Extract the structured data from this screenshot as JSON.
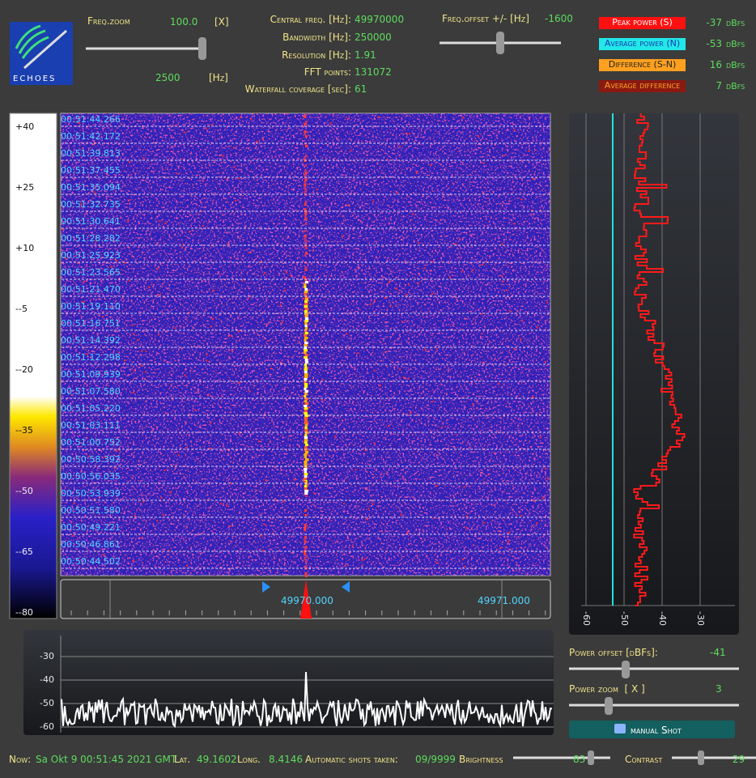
{
  "logo": "ECHOES",
  "freq_zoom": {
    "label": "Freq.zoom",
    "value": "100.0",
    "unit": "[X]",
    "hz_value": "2500",
    "hz_unit": "[Hz]"
  },
  "info": [
    {
      "label": "Central freq. [Hz]:",
      "value": "49970000"
    },
    {
      "label": "Bandwidth [Hz]:",
      "value": "250000"
    },
    {
      "label": "Resolution [Hz]:",
      "value": "1.91"
    },
    {
      "label": "FFT points:",
      "value": "131072"
    },
    {
      "label": "Waterfall coverage [sec]:",
      "value": "61"
    }
  ],
  "freq_offset": {
    "label": "Freq.offset +/- [Hz]",
    "value": "-1600"
  },
  "power": [
    {
      "label": "Peak power (S)",
      "value": "-37",
      "unit": "dBfs"
    },
    {
      "label": "Average power (N)",
      "value": "-53",
      "unit": "dBfs"
    },
    {
      "label": "Difference (S-N)",
      "value": "16",
      "unit": "dBfs"
    },
    {
      "label": "Average difference",
      "value": "7",
      "unit": "dBfs"
    }
  ],
  "color_scale": [
    "+40",
    "+25",
    "+10",
    "--5",
    "--20",
    "--35",
    "--50",
    "--65",
    "--80"
  ],
  "waterfall_times": [
    "00:51:44.266",
    "00:51:42.172",
    "00:51:39.813",
    "00:51:37.455",
    "00:51:35.094",
    "00:51:32.735",
    "00:51:30.641",
    "00:51:28.282",
    "00:51:25.923",
    "00:51:23.565",
    "00:51:21.470",
    "00:51:19.110",
    "00:51:16.751",
    "00:51:14.392",
    "00:51:12.298",
    "00:51:09.939",
    "00:51:07.580",
    "00:51:05.220",
    "00:51:03.111",
    "00:51:00.752",
    "00:50:58.392",
    "00:50:56.035",
    "00:50:53.939",
    "00:50:51.580",
    "00:50:49.221",
    "00:50:46.861",
    "00:50:44.502"
  ],
  "freq_axis": [
    "49970.000",
    "49971.000"
  ],
  "power_plot_ticks": [
    "-60",
    "-50",
    "-40",
    "-30"
  ],
  "spectrum_ticks": [
    "-30",
    "-40",
    "-50",
    "-60"
  ],
  "power_offset": {
    "label": "Power offset [dBFs]:",
    "value": "-41"
  },
  "power_zoom": {
    "label": "Power zoom  [ X ]",
    "value": "3"
  },
  "button": "manual Shot",
  "status": {
    "now_label": "Now:",
    "now": "Sa Okt 9 00:51:45 2021 GMT",
    "lat_label": "Lat.",
    "lat": "49.1602",
    "long_label": "Long.",
    "long": "8.4146",
    "shots_label": "Automatic shots taken:",
    "shots": "09/9999",
    "brightness_label": "Brightness",
    "brightness": "83",
    "contrast_label": "Contrast",
    "contrast": "29"
  }
}
